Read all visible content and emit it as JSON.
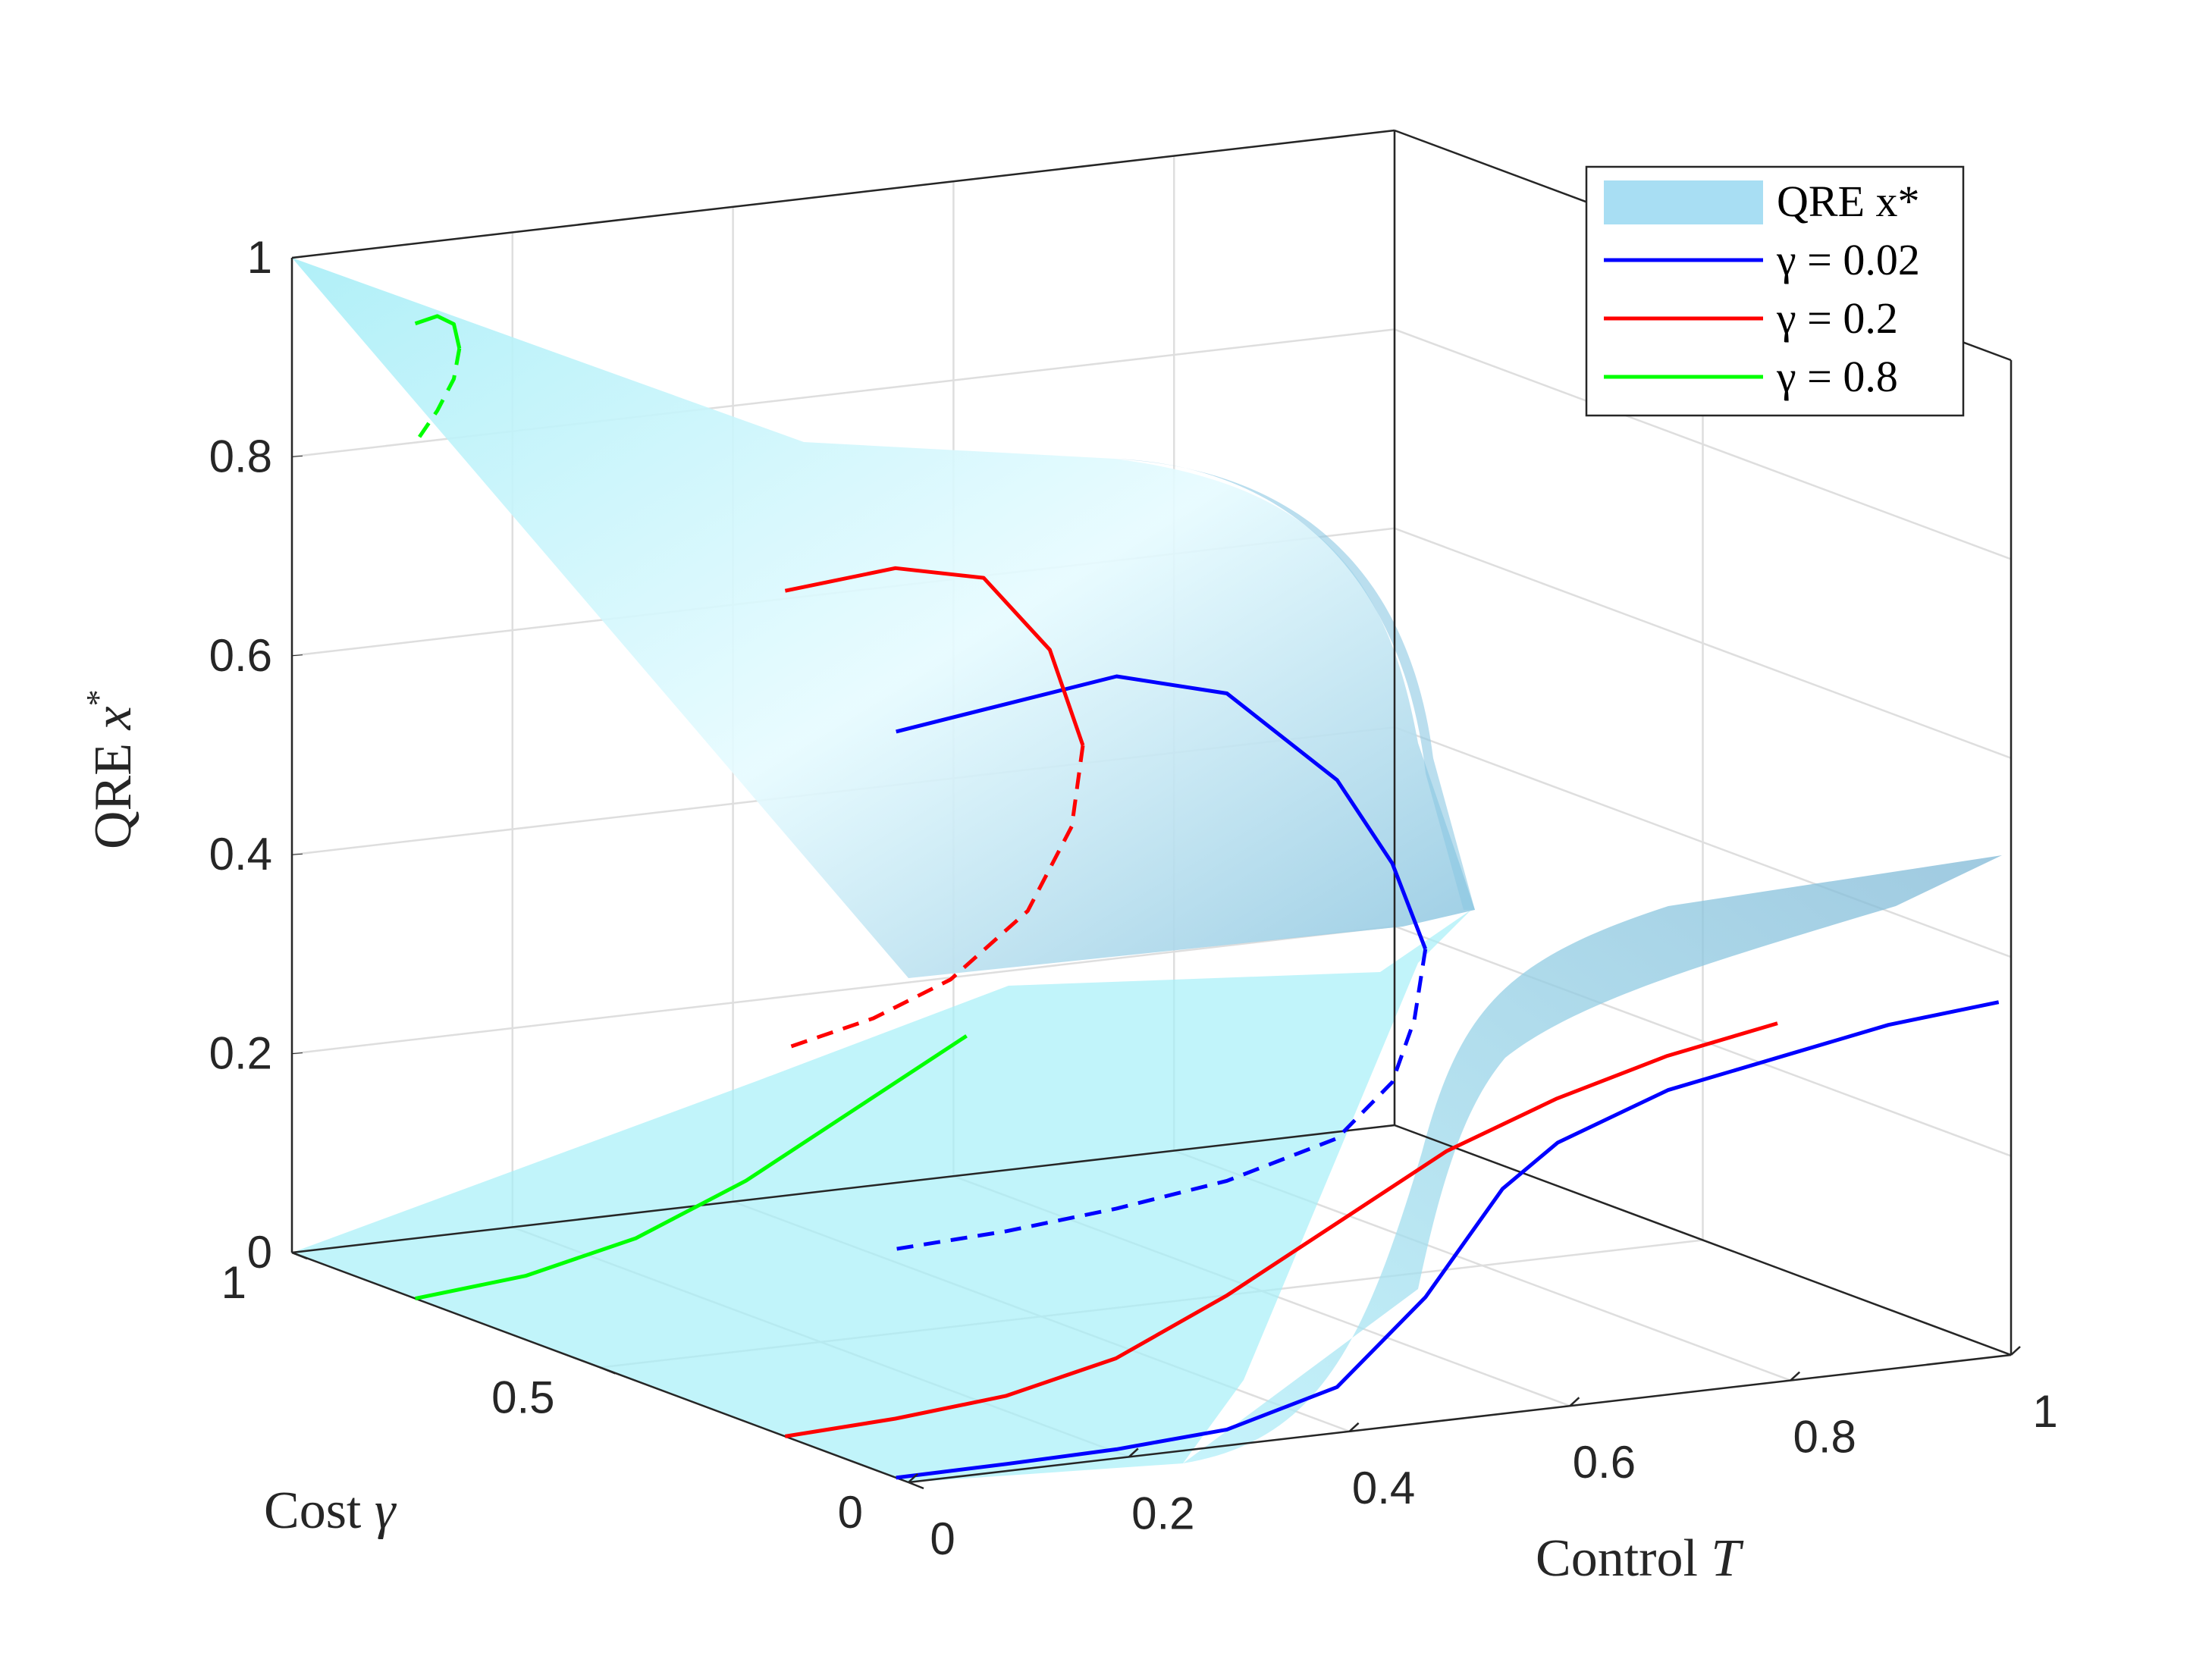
{
  "chart_data": {
    "type": "surface3d",
    "title": "",
    "xlabel": {
      "text": "Control ",
      "symbol": "T"
    },
    "ylabel": {
      "text": "Cost ",
      "symbol": "γ"
    },
    "zlabel": {
      "text": "QRE ",
      "symbol": "x",
      "sup": "*"
    },
    "xlim": [
      0,
      1
    ],
    "ylim": [
      0,
      1
    ],
    "zlim": [
      0,
      1
    ],
    "x_ticks": [
      "0",
      "0.2",
      "0.4",
      "0.6",
      "0.8",
      "1"
    ],
    "y_ticks": [
      "0",
      "0.5",
      "1"
    ],
    "z_ticks": [
      "0",
      "0.2",
      "0.4",
      "0.6",
      "0.8",
      "1"
    ],
    "grid": true,
    "legend_position": "top-right",
    "surface": {
      "name": "QRE x*",
      "color": "#a8e8f5"
    },
    "series": [
      {
        "name": "γ = 0.02",
        "gamma": 0.02,
        "color": "#0000ff",
        "stable_upper": {
          "x": [
            0.0,
            0.2,
            0.3,
            0.4,
            0.45,
            0.48
          ],
          "z": [
            0.75,
            0.78,
            0.75,
            0.65,
            0.56,
            0.47
          ]
        },
        "unstable": {
          "x": [
            0.48,
            0.47,
            0.45,
            0.4,
            0.3,
            0.2,
            0.1,
            0.0
          ],
          "z": [
            0.47,
            0.4,
            0.34,
            0.29,
            0.26,
            0.245,
            0.235,
            0.23
          ]
        },
        "stable_lower": {
          "x": [
            0.0,
            0.1,
            0.2,
            0.3,
            0.4,
            0.48,
            0.55,
            0.6,
            0.7,
            0.8,
            0.9,
            1.0
          ],
          "z": [
            0.0,
            0.001,
            0.003,
            0.01,
            0.04,
            0.12,
            0.22,
            0.26,
            0.3,
            0.32,
            0.34,
            0.35
          ]
        }
      },
      {
        "name": "γ = 0.2",
        "gamma": 0.2,
        "color": "#ff0000",
        "stable_upper": {
          "x": [
            0.0,
            0.1,
            0.18,
            0.24,
            0.27
          ],
          "z": [
            0.85,
            0.86,
            0.84,
            0.76,
            0.66
          ]
        },
        "unstable": {
          "x": [
            0.27,
            0.26,
            0.22,
            0.15,
            0.08,
            0.0
          ],
          "z": [
            0.66,
            0.58,
            0.5,
            0.44,
            0.41,
            0.39
          ]
        },
        "stable_lower": {
          "x": [
            0.0,
            0.1,
            0.2,
            0.3,
            0.4,
            0.5,
            0.6,
            0.7,
            0.8,
            0.9
          ],
          "z": [
            0.0,
            0.005,
            0.015,
            0.04,
            0.09,
            0.15,
            0.21,
            0.25,
            0.28,
            0.3
          ]
        }
      },
      {
        "name": "γ = 0.8",
        "gamma": 0.8,
        "color": "#00ff00",
        "stable_upper": {
          "x": [
            0.0,
            0.02,
            0.035,
            0.04
          ],
          "z": [
            0.98,
            0.985,
            0.975,
            0.95
          ]
        },
        "unstable": {
          "x": [
            0.04,
            0.035,
            0.02,
            0.0
          ],
          "z": [
            0.95,
            0.92,
            0.89,
            0.86
          ]
        },
        "stable_lower": {
          "x": [
            0.0,
            0.1,
            0.2,
            0.3,
            0.4,
            0.5
          ],
          "z": [
            0.0,
            0.01,
            0.035,
            0.08,
            0.14,
            0.2
          ]
        }
      }
    ]
  }
}
